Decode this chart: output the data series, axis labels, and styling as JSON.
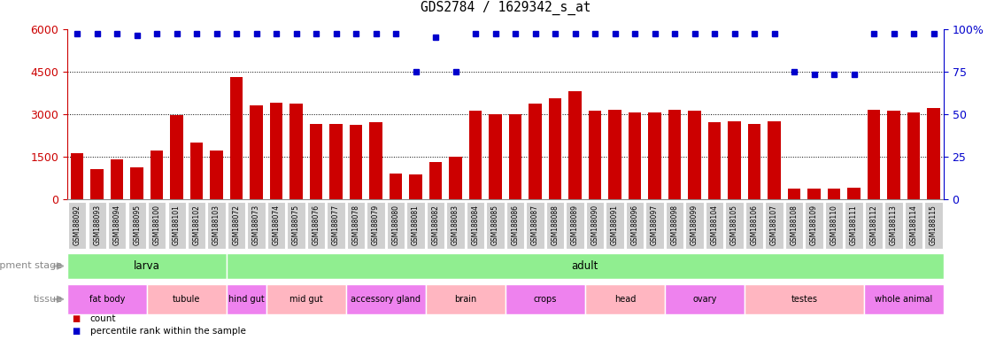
{
  "title": "GDS2784 / 1629342_s_at",
  "samples": [
    "GSM188092",
    "GSM188093",
    "GSM188094",
    "GSM188095",
    "GSM188100",
    "GSM188101",
    "GSM188102",
    "GSM188103",
    "GSM188072",
    "GSM188073",
    "GSM188074",
    "GSM188075",
    "GSM188076",
    "GSM188077",
    "GSM188078",
    "GSM188079",
    "GSM188080",
    "GSM188081",
    "GSM188082",
    "GSM188083",
    "GSM188084",
    "GSM188085",
    "GSM188086",
    "GSM188087",
    "GSM188088",
    "GSM188089",
    "GSM188090",
    "GSM188091",
    "GSM188096",
    "GSM188097",
    "GSM188098",
    "GSM188099",
    "GSM188104",
    "GSM188105",
    "GSM188106",
    "GSM188107",
    "GSM188108",
    "GSM188109",
    "GSM188110",
    "GSM188111",
    "GSM188112",
    "GSM188113",
    "GSM188114",
    "GSM188115"
  ],
  "counts": [
    1600,
    1050,
    1400,
    1100,
    1700,
    2950,
    2000,
    1700,
    4300,
    3300,
    3400,
    3350,
    2650,
    2650,
    2600,
    2700,
    900,
    850,
    1300,
    1500,
    3100,
    3000,
    3000,
    3350,
    3550,
    3800,
    3100,
    3150,
    3050,
    3050,
    3150,
    3100,
    2700,
    2750,
    2650,
    2750,
    350,
    350,
    350,
    400,
    3150,
    3100,
    3050,
    3200
  ],
  "percentiles": [
    97,
    97,
    97,
    96,
    97,
    97,
    97,
    97,
    97,
    97,
    97,
    97,
    97,
    97,
    97,
    97,
    97,
    75,
    95,
    75,
    97,
    97,
    97,
    97,
    97,
    97,
    97,
    97,
    97,
    97,
    97,
    97,
    97,
    97,
    97,
    97,
    75,
    73,
    73,
    73,
    97,
    97,
    97,
    97
  ],
  "percentile_max": 100,
  "count_max": 6000,
  "dev_stage_groups": [
    {
      "label": "larva",
      "start": 0,
      "end": 8
    },
    {
      "label": "adult",
      "start": 8,
      "end": 44
    }
  ],
  "tissue_groups": [
    {
      "label": "fat body",
      "start": 0,
      "end": 4
    },
    {
      "label": "tubule",
      "start": 4,
      "end": 8
    },
    {
      "label": "hind gut",
      "start": 8,
      "end": 10
    },
    {
      "label": "mid gut",
      "start": 10,
      "end": 14
    },
    {
      "label": "accessory gland",
      "start": 14,
      "end": 18
    },
    {
      "label": "brain",
      "start": 18,
      "end": 22
    },
    {
      "label": "crops",
      "start": 22,
      "end": 26
    },
    {
      "label": "head",
      "start": 26,
      "end": 30
    },
    {
      "label": "ovary",
      "start": 30,
      "end": 34
    },
    {
      "label": "testes",
      "start": 34,
      "end": 40
    },
    {
      "label": "whole animal",
      "start": 40,
      "end": 44
    }
  ],
  "bar_color": "#cc0000",
  "percentile_color": "#0000cc",
  "left_axis_color": "#cc0000",
  "right_axis_color": "#0000cc",
  "yticks_left": [
    0,
    1500,
    3000,
    4500,
    6000
  ],
  "yticks_right": [
    0,
    25,
    50,
    75,
    100
  ],
  "grid_values": [
    1500,
    3000,
    4500
  ],
  "dev_stage_color": "#90ee90",
  "tissue_color_a": "#ee82ee",
  "tissue_color_b": "#ffb6c1",
  "tick_bg_color": "#d0d0d0",
  "background_color": "#ffffff"
}
